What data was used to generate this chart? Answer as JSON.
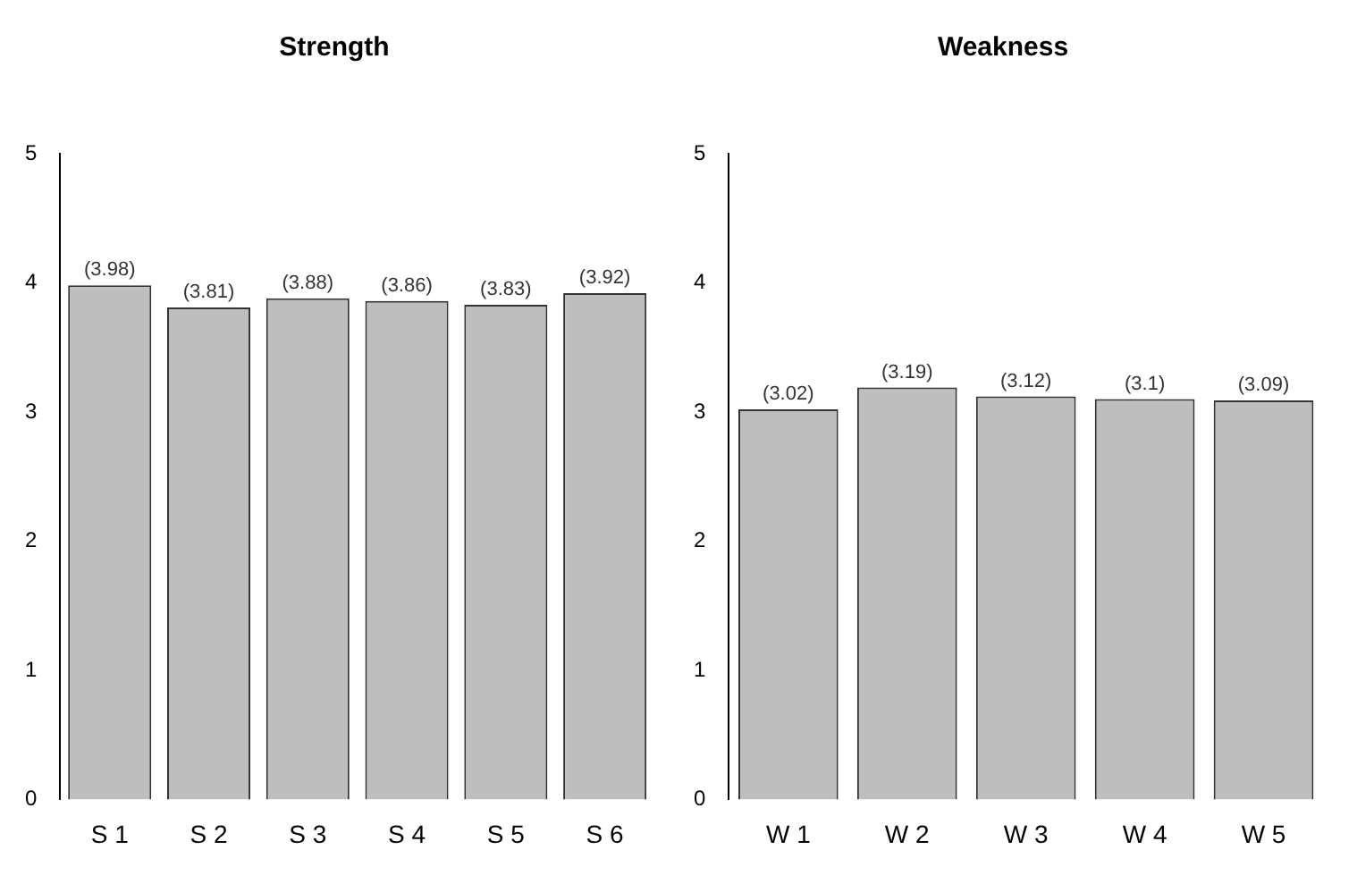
{
  "chart_data": [
    {
      "type": "bar",
      "title": "Strength",
      "categories": [
        "S 1",
        "S 2",
        "S 3",
        "S 4",
        "S 5",
        "S 6"
      ],
      "values": [
        3.98,
        3.81,
        3.88,
        3.86,
        3.83,
        3.92
      ],
      "value_labels": [
        "(3.98)",
        "(3.81)",
        "(3.88)",
        "(3.86)",
        "(3.83)",
        "(3.92)"
      ],
      "color": "#bebebe",
      "ylim": [
        0,
        5
      ],
      "yticks": [
        0,
        1,
        2,
        3,
        4,
        5
      ]
    },
    {
      "type": "bar",
      "title": "Weakness",
      "categories": [
        "W 1",
        "W 2",
        "W 3",
        "W 4",
        "W 5"
      ],
      "values": [
        3.02,
        3.19,
        3.12,
        3.1,
        3.09
      ],
      "value_labels": [
        "(3.02)",
        "(3.19)",
        "(3.12)",
        "(3.1)",
        "(3.09)"
      ],
      "color": "#bebebe",
      "ylim": [
        0,
        5
      ],
      "yticks": [
        0,
        1,
        2,
        3,
        4,
        5
      ]
    }
  ]
}
